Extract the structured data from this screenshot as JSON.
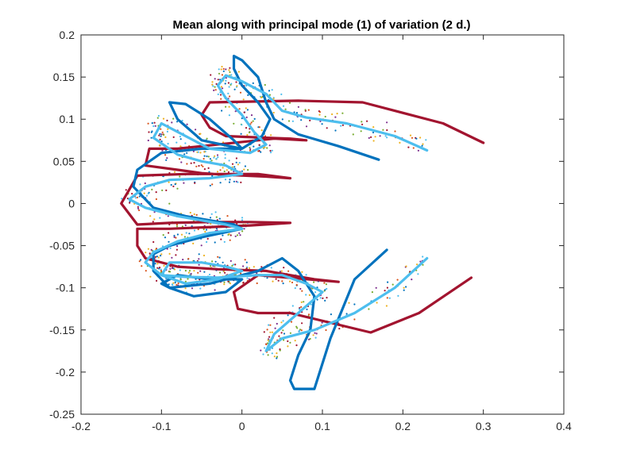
{
  "chart_data": {
    "type": "line",
    "title": "Mean along with principal mode (1) of variation (2 d.)",
    "xlabel": "",
    "ylabel": "",
    "xlim": [
      -0.2,
      0.4
    ],
    "ylim": [
      -0.25,
      0.2
    ],
    "xticks": [
      "-0.2",
      "-0.1",
      "0",
      "0.1",
      "0.2",
      "0.3",
      "0.4"
    ],
    "yticks": [
      "0.2",
      "0.15",
      "0.1",
      "0.05",
      "0",
      "-0.05",
      "-0.1",
      "-0.15",
      "-0.2",
      "-0.25"
    ],
    "grid": false,
    "legend": "none",
    "colors": {
      "mean": "#4DBEEE",
      "mode_a": "#0072BD",
      "mode_b": "#A2142F",
      "axis": "#262626",
      "scatter": [
        "#0072BD",
        "#D95319",
        "#EDB120",
        "#7E2F8E",
        "#77AC30",
        "#4DBEEE",
        "#A2142F"
      ]
    },
    "scatter_noise": 0.012,
    "series": [
      {
        "color_key": "mean",
        "x": [
          0.23,
          0.19,
          0.13,
          0.08,
          0.05,
          0.03,
          0.0,
          -0.02,
          -0.03,
          -0.02,
          0.0,
          0.015,
          0.03,
          0.01,
          -0.04,
          -0.08,
          -0.1,
          -0.11,
          -0.08,
          -0.05,
          -0.02,
          0.0,
          -0.04,
          -0.09,
          -0.12,
          -0.14,
          -0.12,
          -0.08,
          -0.05,
          -0.02,
          0.0,
          -0.04,
          -0.08,
          -0.11,
          -0.12,
          -0.1,
          -0.07,
          -0.03,
          0.0,
          -0.02,
          -0.05,
          -0.09,
          -0.1,
          -0.07,
          -0.03,
          0.02,
          0.05,
          0.08,
          0.1,
          0.07,
          0.04,
          0.03,
          0.05,
          0.09,
          0.14,
          0.19,
          0.23
        ],
        "y": [
          0.063,
          0.08,
          0.095,
          0.102,
          0.11,
          0.13,
          0.145,
          0.152,
          0.14,
          0.125,
          0.105,
          0.085,
          0.07,
          0.06,
          0.065,
          0.085,
          0.095,
          0.078,
          0.058,
          0.05,
          0.045,
          0.035,
          0.03,
          0.028,
          0.02,
          0.005,
          -0.005,
          -0.015,
          -0.02,
          -0.025,
          -0.03,
          -0.035,
          -0.045,
          -0.058,
          -0.07,
          -0.085,
          -0.095,
          -0.09,
          -0.08,
          -0.075,
          -0.07,
          -0.07,
          -0.085,
          -0.087,
          -0.088,
          -0.085,
          -0.085,
          -0.095,
          -0.105,
          -0.13,
          -0.155,
          -0.175,
          -0.16,
          -0.15,
          -0.13,
          -0.1,
          -0.065
        ]
      },
      {
        "color_key": "mode_a",
        "x": [
          0.17,
          0.12,
          0.07,
          0.04,
          0.03,
          0.02,
          0.0,
          -0.01,
          -0.01,
          0.0,
          0.02,
          0.035,
          0.025,
          0.0,
          -0.05,
          -0.08,
          -0.09,
          -0.07,
          -0.04,
          -0.01,
          0.0,
          -0.05,
          -0.1,
          -0.13,
          -0.135,
          -0.11,
          -0.07,
          -0.04,
          -0.01,
          0.0,
          -0.05,
          -0.09,
          -0.11,
          -0.11,
          -0.09,
          -0.06,
          -0.02,
          0.0,
          -0.04,
          -0.08,
          -0.1,
          -0.09,
          -0.04,
          0.02,
          0.05,
          0.07,
          0.09,
          0.085,
          0.07,
          0.06,
          0.065,
          0.09,
          0.11,
          0.14,
          0.18
        ],
        "y": [
          0.052,
          0.068,
          0.082,
          0.1,
          0.12,
          0.15,
          0.17,
          0.175,
          0.16,
          0.14,
          0.12,
          0.1,
          0.08,
          0.065,
          0.075,
          0.1,
          0.12,
          0.118,
          0.1,
          0.075,
          0.065,
          0.065,
          0.06,
          0.04,
          0.02,
          -0.005,
          -0.015,
          -0.02,
          -0.025,
          -0.03,
          -0.04,
          -0.05,
          -0.06,
          -0.08,
          -0.1,
          -0.11,
          -0.105,
          -0.09,
          -0.09,
          -0.085,
          -0.095,
          -0.1,
          -0.095,
          -0.08,
          -0.065,
          -0.08,
          -0.11,
          -0.15,
          -0.18,
          -0.21,
          -0.22,
          -0.22,
          -0.16,
          -0.09,
          -0.055
        ]
      },
      {
        "color_key": "mode_b",
        "x": [
          0.3,
          0.25,
          0.15,
          0.07,
          -0.04,
          -0.05,
          -0.04,
          -0.02,
          0.03,
          0.06,
          0.08,
          0.04,
          -0.05,
          -0.08,
          -0.115,
          -0.12,
          -0.08,
          -0.05,
          -0.02,
          0.03,
          0.06,
          0.02,
          -0.07,
          -0.13,
          -0.15,
          -0.13,
          -0.09,
          -0.04,
          0.01,
          0.06,
          0.01,
          -0.09,
          -0.13,
          -0.13,
          -0.12,
          -0.08,
          -0.03,
          0.03,
          0.09,
          0.12,
          0.02,
          -0.01,
          -0.005,
          0.02,
          0.06,
          0.16,
          0.22,
          0.285
        ],
        "y": [
          0.072,
          0.095,
          0.12,
          0.122,
          0.12,
          0.105,
          0.09,
          0.08,
          0.078,
          0.077,
          0.075,
          0.077,
          0.068,
          0.065,
          0.065,
          0.045,
          0.04,
          0.036,
          0.034,
          0.032,
          0.03,
          0.035,
          0.035,
          0.033,
          0.0,
          -0.025,
          -0.023,
          -0.022,
          -0.022,
          -0.023,
          -0.026,
          -0.03,
          -0.03,
          -0.05,
          -0.065,
          -0.075,
          -0.078,
          -0.08,
          -0.09,
          -0.093,
          -0.085,
          -0.105,
          -0.125,
          -0.13,
          -0.13,
          -0.153,
          -0.13,
          -0.088
        ]
      }
    ]
  }
}
